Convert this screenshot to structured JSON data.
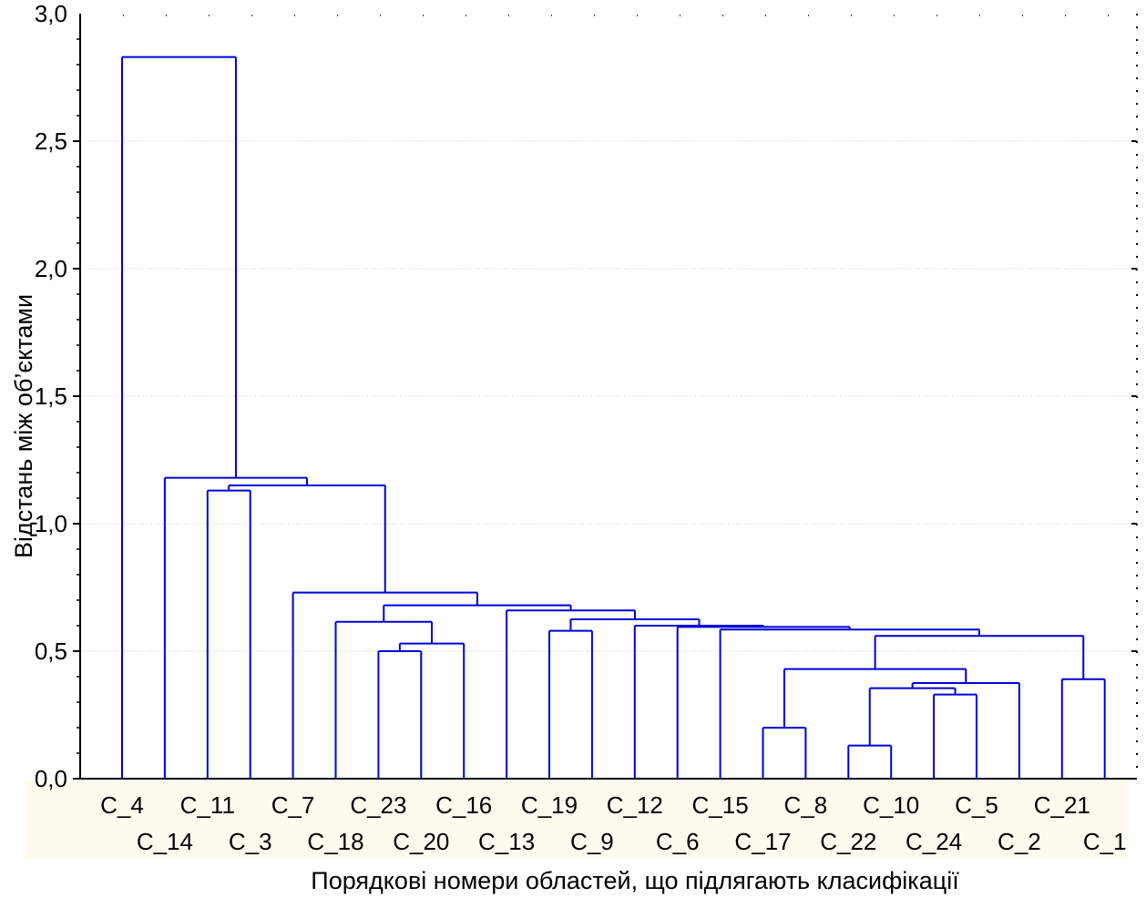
{
  "chart_data": {
    "type": "dendrogram",
    "xlabel": "Порядкові номери областей, що підлягають класифікації",
    "ylabel": "Відстань між об’єктами",
    "ylim": [
      0,
      3
    ],
    "y_ticks": [
      0.0,
      0.5,
      1.0,
      1.5,
      2.0,
      2.5
    ],
    "y_tick_labels": [
      "0,0",
      "0,5",
      "1,0",
      "1,5",
      "2,0",
      "2,5"
    ],
    "top_tick_label": "3,0",
    "leaves": [
      "C_4",
      "C_14",
      "C_11",
      "C_3",
      "C_7",
      "C_18",
      "C_23",
      "C_20",
      "C_16",
      "C_13",
      "C_19",
      "C_9",
      "C_12",
      "C_6",
      "C_15",
      "C_17",
      "C_8",
      "C_22",
      "C_10",
      "C_24",
      "C_5",
      "C_2",
      "C_21",
      "C_1"
    ],
    "merges": [
      {
        "a": "C_22",
        "b": "C_10",
        "height": 0.13
      },
      {
        "a": "C_8",
        "b": "C_17",
        "height": 0.2
      },
      {
        "a": "C_24",
        "b": "C_5",
        "height": 0.33
      },
      {
        "a": "{C_22,C_10}",
        "b": "C_24+C_5 group",
        "height": 0.355
      },
      {
        "a": "{C_22,C_10,C_24,C_5}",
        "b": "C_2",
        "height": 0.375
      },
      {
        "a": "C_21",
        "b": "C_1",
        "height": 0.39
      },
      {
        "a": "{C_8,C_17}",
        "b": "{C_22,C_10,C_24,C_5,C_2}",
        "height": 0.43
      },
      {
        "a": "C_23",
        "b": "C_20",
        "height": 0.5
      },
      {
        "a": "{C_23,C_20}",
        "b": "C_16",
        "height": 0.53
      },
      {
        "a": "{C_8..C_2}",
        "b": "{C_21,C_1}",
        "height": 0.56
      },
      {
        "a": "C_19",
        "b": "C_9",
        "height": 0.58
      },
      {
        "a": "C_17 group",
        "b": "{C_8..C_1}",
        "height": 0.585
      },
      {
        "a": "C_15",
        "b": "{C_17..C_1}",
        "height": 0.595
      },
      {
        "a": "C_6",
        "b": "{C_15..C_1}",
        "height": 0.6
      },
      {
        "a": "C_18",
        "b": "{C_23,C_20,C_16}",
        "height": 0.615
      },
      {
        "a": "{C_19,C_9}",
        "b": "{C_12..C_1}",
        "height": 0.625
      },
      {
        "a": "C_13",
        "b": "{C_19..C_1}",
        "height": 0.66
      },
      {
        "a": "{C_18..C_16}",
        "b": "{C_13..C_1}",
        "height": 0.68
      },
      {
        "a": "C_7",
        "b": "{C_18..C_1}",
        "height": 0.73
      },
      {
        "a": "C_11",
        "b": "C_3",
        "height": 1.13
      },
      {
        "a": "{C_11,C_3}",
        "b": "{C_7..C_1}",
        "height": 1.15
      },
      {
        "a": "C_14",
        "b": "{C_11..C_1}",
        "height": 1.18
      },
      {
        "a": "C_4",
        "b": "{C_14..C_1}",
        "height": 2.83
      }
    ]
  }
}
